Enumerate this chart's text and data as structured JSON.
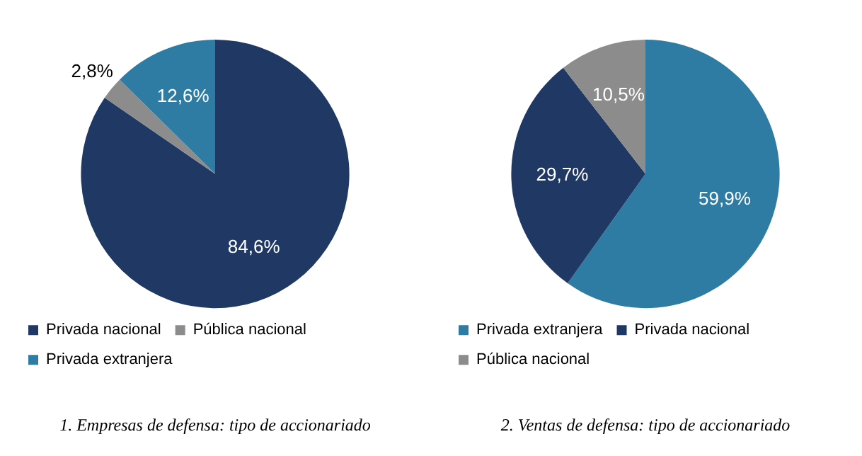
{
  "chart_data": [
    {
      "type": "pie",
      "title": "1. Empresas de defensa: tipo de accionariado",
      "categories": [
        "Privada nacional",
        "Pública nacional",
        "Privada extranjera"
      ],
      "values": [
        84.6,
        2.8,
        12.6
      ],
      "colors": [
        "#1f3864",
        "#8c8c8c",
        "#2e7ca3"
      ],
      "value_labels": [
        "84,6%",
        "2,8%",
        "12,6%"
      ],
      "legend": "bottom"
    },
    {
      "type": "pie",
      "title": "2. Ventas de defensa: tipo de accionariado",
      "categories": [
        "Privada extranjera",
        "Privada nacional",
        "Pública nacional"
      ],
      "values": [
        59.9,
        29.7,
        10.5
      ],
      "colors": [
        "#2e7ca3",
        "#1f3864",
        "#8c8c8c"
      ],
      "value_labels": [
        "59,9%",
        "29,7%",
        "10,5%"
      ],
      "legend": "bottom"
    }
  ]
}
